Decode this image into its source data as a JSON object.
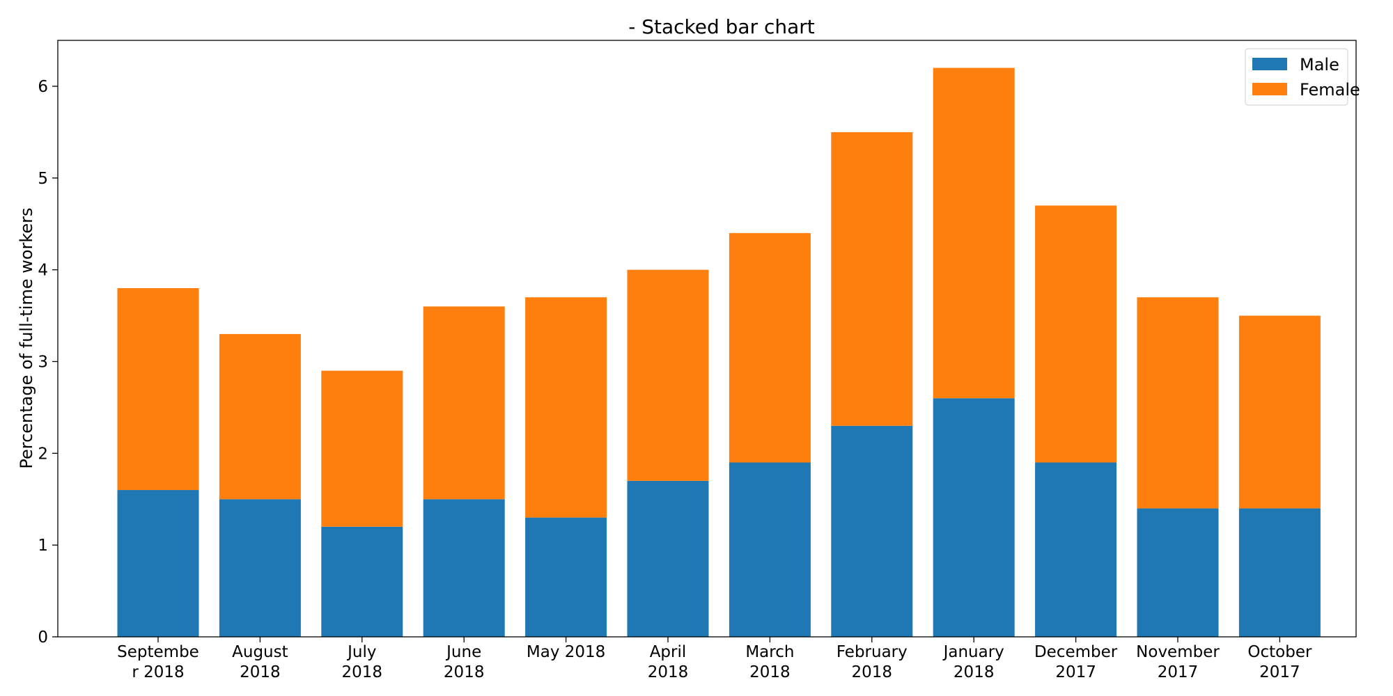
{
  "chart_data": {
    "type": "bar",
    "stacked": true,
    "title": "- Stacked bar chart",
    "xlabel": "",
    "ylabel": "Percentage of full-time workers",
    "categories": [
      [
        "Septembe",
        "r 2018"
      ],
      [
        "August",
        "2018"
      ],
      [
        "July",
        "2018"
      ],
      [
        "June",
        "2018"
      ],
      [
        "May 2018"
      ],
      [
        "April",
        "2018"
      ],
      [
        "March",
        "2018"
      ],
      [
        "February",
        "2018"
      ],
      [
        "January",
        "2018"
      ],
      [
        "December",
        "2017"
      ],
      [
        "November",
        "2017"
      ],
      [
        "October",
        "2017"
      ]
    ],
    "series": [
      {
        "name": "Male",
        "color": "#1f77b4",
        "values": [
          1.6,
          1.5,
          1.2,
          1.5,
          1.3,
          1.7,
          1.9,
          2.3,
          2.6,
          1.9,
          1.4,
          1.4
        ]
      },
      {
        "name": "Female",
        "color": "#ff7f0e",
        "values": [
          2.2,
          1.8,
          1.7,
          2.1,
          2.4,
          2.3,
          2.5,
          3.2,
          3.6,
          2.8,
          2.3,
          2.1
        ]
      }
    ],
    "ylim": [
      0,
      6.5
    ],
    "yticks": [
      0,
      1,
      2,
      3,
      4,
      5,
      6
    ],
    "grid": false,
    "legend_position": "top-right"
  }
}
